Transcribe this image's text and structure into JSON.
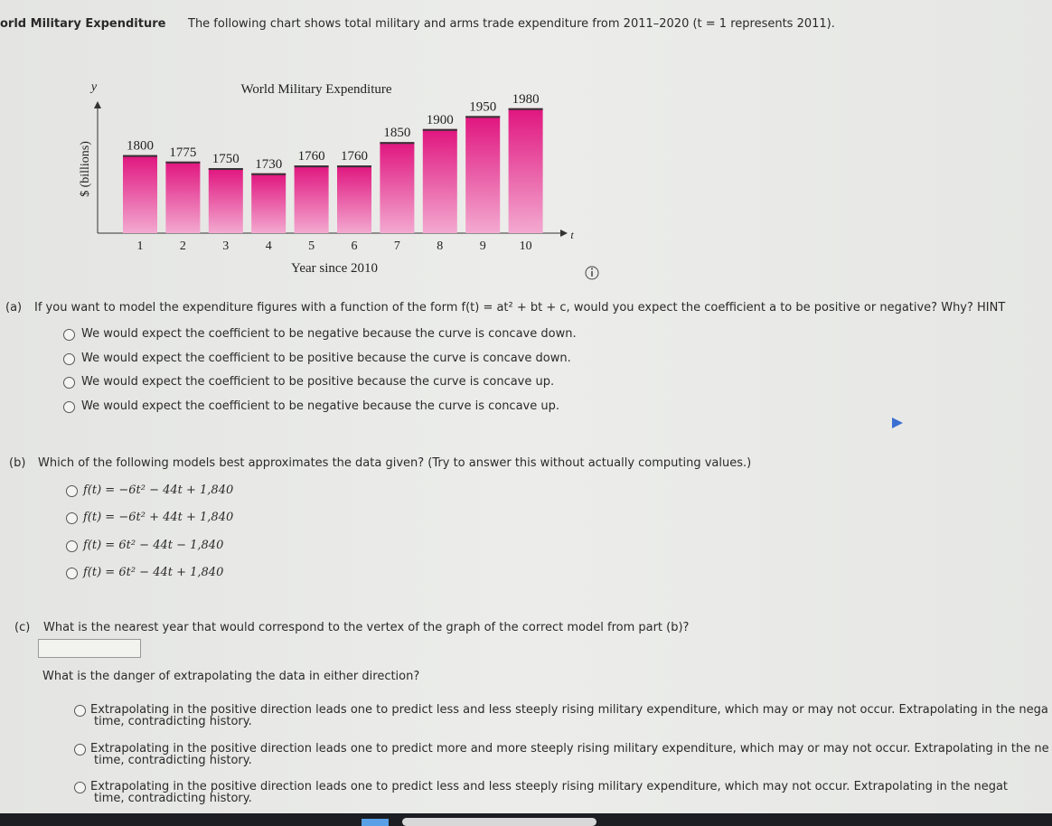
{
  "header": {
    "title": "orld Military Expenditure",
    "description": "The following chart shows total military and arms trade expenditure from 2011–2020 (t = 1 represents 2011)."
  },
  "chart_data": {
    "type": "bar",
    "title": "World Military Expenditure",
    "x_label": "Year since 2010",
    "y_label": "$ (billions)",
    "x_axis_symbol": "t",
    "y_axis_symbol": "y",
    "categories": [
      "1",
      "2",
      "3",
      "4",
      "5",
      "6",
      "7",
      "8",
      "9",
      "10"
    ],
    "values": [
      1800,
      1775,
      1750,
      1730,
      1760,
      1760,
      1850,
      1900,
      1950,
      1980
    ],
    "color": "#e0157f",
    "ylim": [
      1500,
      2000
    ]
  },
  "part_a": {
    "label": "(a)",
    "question": "If you want to model the expenditure figures with a function of the form f(t) = at² + bt + c, would you expect the coefficient a to be positive or negative? Why? HINT",
    "options": [
      "We would expect the coefficient to be negative because the curve is concave down.",
      "We would expect the coefficient to be positive because the curve is concave down.",
      "We would expect the coefficient to be positive because the curve is concave up.",
      "We would expect the coefficient to be negative because the curve is concave up."
    ]
  },
  "part_b": {
    "label": "(b)",
    "question": "Which of the following models best approximates the data given? (Try to answer this without actually computing values.)",
    "options": [
      "f(t) = −6t² − 44t + 1,840",
      "f(t) = −6t² + 44t + 1,840",
      "f(t) = 6t² − 44t − 1,840",
      "f(t) = 6t² − 44t + 1,840"
    ]
  },
  "part_c": {
    "label": "(c)",
    "question": "What is the nearest year that would correspond to the vertex of the graph of the correct model from part (b)?",
    "followup": "What is the danger of extrapolating the data in either direction?",
    "options": [
      [
        "Extrapolating in the positive direction leads one to predict less and less steeply rising military expenditure, which may or may not occur. Extrapolating in the nega",
        "time, contradicting history."
      ],
      [
        "Extrapolating in the positive direction leads one to predict more and more steeply rising military expenditure, which may or may not occur. Extrapolating in the ne",
        "time, contradicting history."
      ],
      [
        "Extrapolating in the positive direction leads one to predict less and less steeply rising military expenditure, which may not occur. Extrapolating in the negat",
        "time, contradicting history."
      ]
    ]
  }
}
